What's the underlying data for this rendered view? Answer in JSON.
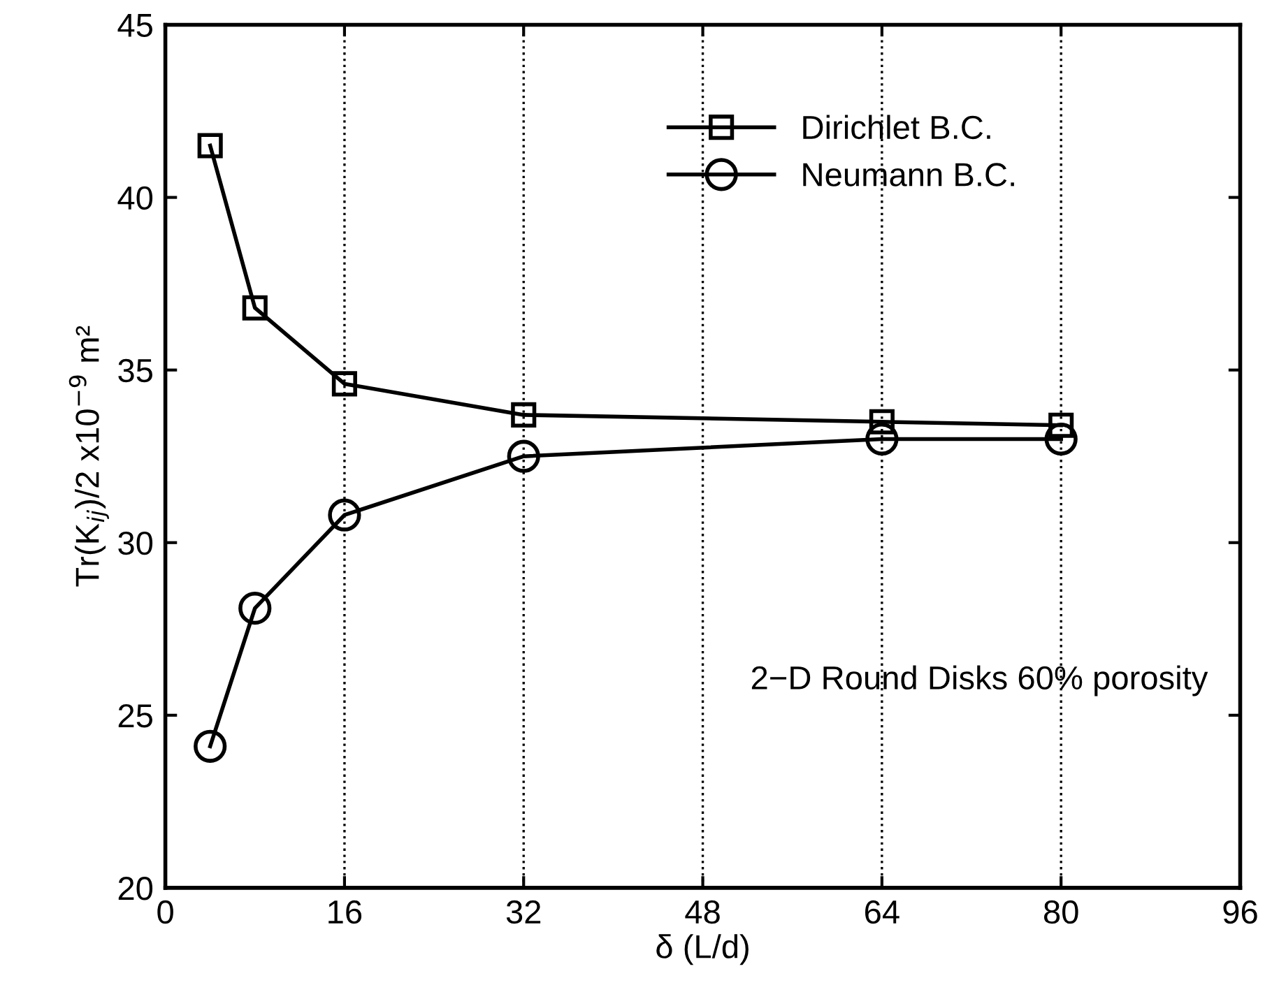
{
  "chart_data": {
    "type": "line",
    "xlabel": "δ (L/d)",
    "ylabel": "Tr(K$_{ij}$)/2 x10$^{−9}$ m²",
    "x": [
      4,
      8,
      16,
      32,
      64,
      80
    ],
    "series": [
      {
        "name": "Dirichlet B.C.",
        "color": "#000000",
        "marker": "square",
        "values": [
          41.5,
          36.8,
          34.6,
          33.7,
          33.5,
          33.4
        ]
      },
      {
        "name": "Neumann B.C.",
        "color": "#000000",
        "marker": "circle",
        "values": [
          24.1,
          28.1,
          30.8,
          32.5,
          33.0,
          33.0
        ]
      }
    ],
    "xlim": [
      0,
      96
    ],
    "xticks": [
      0,
      16,
      32,
      48,
      64,
      80,
      96
    ],
    "ylim": [
      20,
      45
    ],
    "yticks": [
      20,
      25,
      30,
      35,
      40,
      45
    ],
    "grid": "x",
    "legend": "top right",
    "line_style": "solid",
    "annotations": [
      "2−D Round Disks 60% porosity"
    ]
  }
}
